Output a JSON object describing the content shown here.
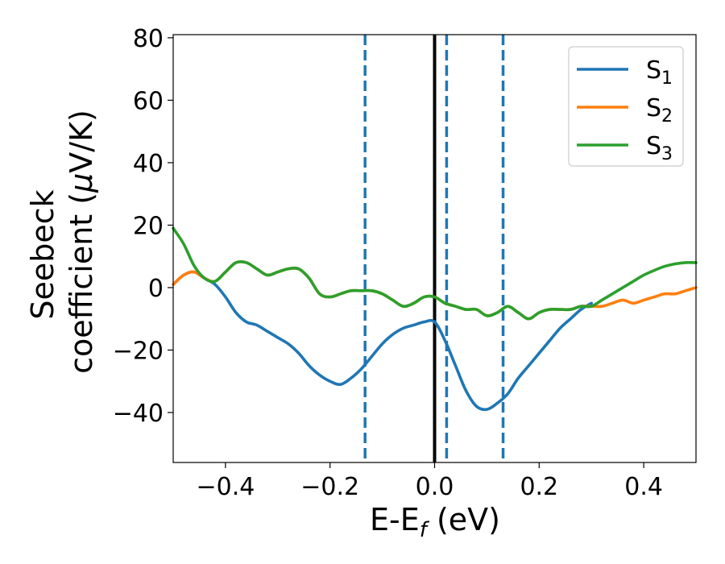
{
  "chart_data": {
    "type": "line",
    "xlabel": "E-E",
    "xlabel_sub": "f",
    "xlabel_unit": "(eV)",
    "ylabel_line1": "Seebeck",
    "ylabel_line2_text": "coefficient",
    "ylabel_line2_unit_mu": "μ",
    "ylabel_line2_unit_rest": "V/K)",
    "ylabel_line2_open": "(",
    "xlim": [
      -0.5,
      0.5
    ],
    "ylim": [
      -56,
      81
    ],
    "xticks": [
      -0.4,
      -0.2,
      0.0,
      0.2,
      0.4
    ],
    "xtick_labels": [
      "−0.4",
      "−0.2",
      "0.0",
      "0.2",
      "0.4"
    ],
    "yticks": [
      80,
      60,
      40,
      20,
      0,
      -20,
      -40
    ],
    "ytick_labels": [
      "80",
      "60",
      "40",
      "20",
      "0",
      "−20",
      "−40"
    ],
    "grid": false,
    "legend_position": "top-right",
    "vlines": [
      {
        "x": 0.0,
        "style": "solid",
        "color": "#000000"
      },
      {
        "x": -0.133,
        "style": "dashed",
        "color": "#1f77b4"
      },
      {
        "x": 0.023,
        "style": "dashed",
        "color": "#1f77b4"
      },
      {
        "x": 0.131,
        "style": "dashed",
        "color": "#1f77b4"
      }
    ],
    "series": [
      {
        "name": "S",
        "sub": "1",
        "color": "#1f77b4",
        "x": [
          -0.5,
          -0.48,
          -0.46,
          -0.44,
          -0.42,
          -0.4,
          -0.38,
          -0.36,
          -0.34,
          -0.32,
          -0.3,
          -0.28,
          -0.26,
          -0.24,
          -0.22,
          -0.2,
          -0.18,
          -0.16,
          -0.14,
          -0.12,
          -0.1,
          -0.08,
          -0.06,
          -0.04,
          -0.02,
          0.0,
          0.02,
          0.04,
          0.06,
          0.08,
          0.1,
          0.12,
          0.14,
          0.16,
          0.18,
          0.2,
          0.22,
          0.24,
          0.26,
          0.28,
          0.3
        ],
        "y": [
          1,
          4,
          5,
          3,
          1,
          -3,
          -8,
          -11,
          -12,
          -14,
          -16,
          -18,
          -21,
          -25,
          -28,
          -30,
          -31,
          -29,
          -26,
          -22,
          -18,
          -15,
          -13,
          -12,
          -11,
          -11,
          -17,
          -25,
          -33,
          -38,
          -39,
          -37,
          -34,
          -29,
          -25,
          -21,
          -17,
          -13,
          -10,
          -7,
          -5
        ]
      },
      {
        "name": "S",
        "sub": "2",
        "color": "#ff7f0e",
        "x": [
          -0.5,
          -0.48,
          -0.46,
          -0.44,
          -0.42,
          -0.4,
          -0.38,
          -0.36,
          -0.34,
          -0.32,
          -0.3,
          -0.28,
          -0.26,
          -0.24,
          -0.22,
          -0.2,
          -0.18,
          -0.16,
          -0.14,
          -0.12,
          -0.1,
          -0.08,
          -0.06,
          -0.04,
          -0.02,
          0.0,
          0.02,
          0.04,
          0.06,
          0.08,
          0.1,
          0.12,
          0.14,
          0.16,
          0.18,
          0.2,
          0.22,
          0.24,
          0.26,
          0.28,
          0.3,
          0.32,
          0.34,
          0.36,
          0.38,
          0.4,
          0.42,
          0.44,
          0.46,
          0.48,
          0.5
        ],
        "y": [
          1,
          4,
          5,
          3,
          2,
          5,
          8,
          8,
          6,
          4,
          5,
          6,
          6,
          3,
          -2,
          -3,
          -2,
          -1,
          -1,
          -1,
          -2,
          -4,
          -6,
          -5,
          -3,
          -3,
          -5,
          -6,
          -7,
          -7,
          -9,
          -8,
          -6,
          -8,
          -10,
          -8,
          -7,
          -7,
          -7,
          -6,
          -6,
          -6,
          -5,
          -4,
          -5,
          -4,
          -3,
          -2,
          -2,
          -1,
          0
        ]
      },
      {
        "name": "S",
        "sub": "3",
        "color": "#2ca02c",
        "x": [
          -0.5,
          -0.48,
          -0.46,
          -0.44,
          -0.42,
          -0.4,
          -0.38,
          -0.36,
          -0.34,
          -0.32,
          -0.3,
          -0.28,
          -0.26,
          -0.24,
          -0.22,
          -0.2,
          -0.18,
          -0.16,
          -0.14,
          -0.12,
          -0.1,
          -0.08,
          -0.06,
          -0.04,
          -0.02,
          0.0,
          0.02,
          0.04,
          0.06,
          0.08,
          0.1,
          0.12,
          0.14,
          0.16,
          0.18,
          0.2,
          0.22,
          0.24,
          0.26,
          0.28,
          0.3,
          0.32,
          0.34,
          0.36,
          0.38,
          0.4,
          0.42,
          0.44,
          0.46,
          0.48,
          0.5
        ],
        "y": [
          19,
          14,
          7,
          3,
          2,
          5,
          8,
          8,
          6,
          4,
          5,
          6,
          6,
          3,
          -2,
          -3,
          -2,
          -1,
          -1,
          -1,
          -2,
          -4,
          -6,
          -5,
          -3,
          -3,
          -5,
          -6,
          -7,
          -7,
          -9,
          -8,
          -6,
          -8,
          -10,
          -8,
          -7,
          -7,
          -7,
          -6,
          -6,
          -4,
          -2,
          0,
          2,
          4,
          5.5,
          6.8,
          7.6,
          8,
          8
        ]
      }
    ]
  }
}
